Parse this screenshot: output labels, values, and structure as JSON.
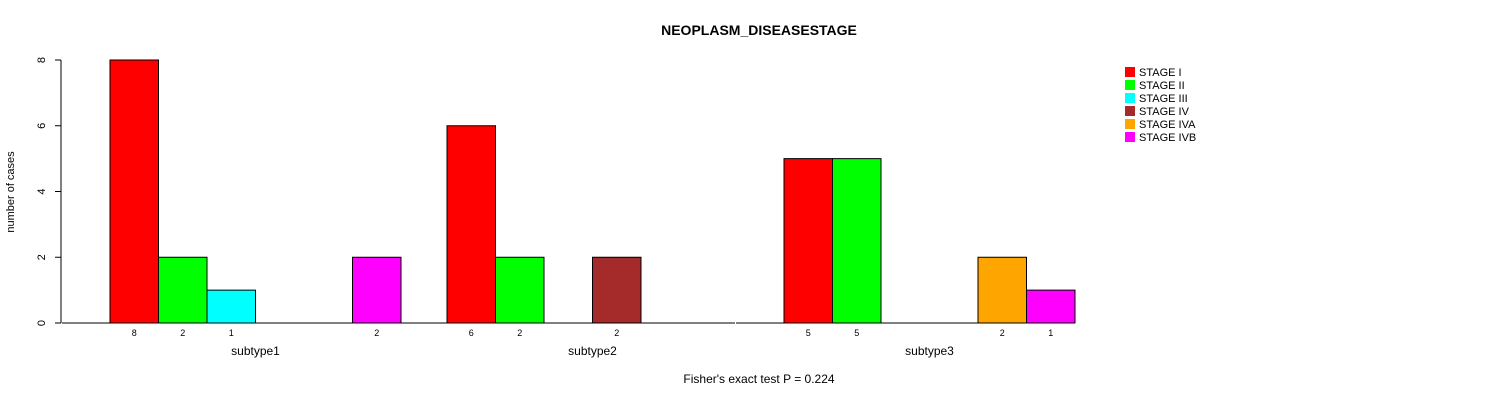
{
  "chart_data": {
    "type": "bar",
    "title": "NEOPLASM_DISEASESTAGE",
    "xlabel": "Fisher's exact test P = 0.224",
    "ylabel": "number of cases",
    "ylim": [
      0,
      8
    ],
    "yticks": [
      "0",
      "2",
      "4",
      "6",
      "8"
    ],
    "categories": [
      "subtype1",
      "subtype2",
      "subtype3"
    ],
    "series": [
      {
        "name": "STAGE I",
        "color": "#ff0000",
        "values": [
          8,
          6,
          5
        ]
      },
      {
        "name": "STAGE II",
        "color": "#00ff00",
        "values": [
          2,
          2,
          5
        ]
      },
      {
        "name": "STAGE III",
        "color": "#00ffff",
        "values": [
          1,
          0,
          0
        ]
      },
      {
        "name": "STAGE IV",
        "color": "#a52a2a",
        "values": [
          0,
          2,
          0
        ]
      },
      {
        "name": "STAGE IVA",
        "color": "#ffa500",
        "values": [
          0,
          0,
          2
        ]
      },
      {
        "name": "STAGE IVB",
        "color": "#ff00ff",
        "values": [
          2,
          0,
          1
        ]
      }
    ],
    "legend_position": "top-right",
    "grid": false
  }
}
